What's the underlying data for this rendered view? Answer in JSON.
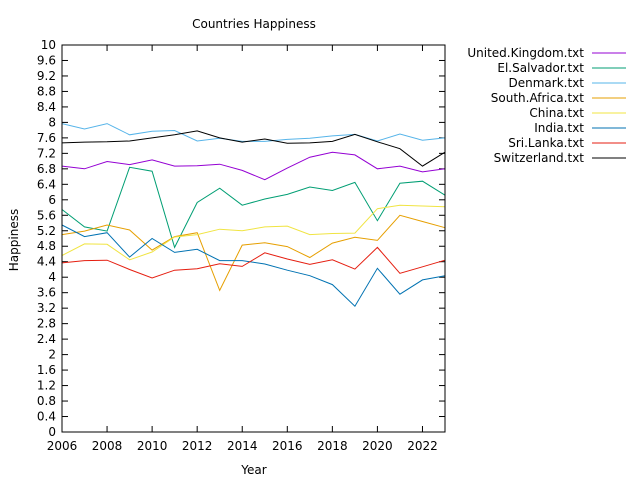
{
  "chart_data": {
    "type": "line",
    "title": "Countries Happiness",
    "xlabel": "Year",
    "ylabel": "Happiness",
    "xlim": [
      2006,
      2023
    ],
    "ylim": [
      0,
      10
    ],
    "xticks": [
      2006,
      2008,
      2010,
      2012,
      2014,
      2016,
      2018,
      2020,
      2022
    ],
    "yticks": [
      0,
      0.4,
      0.8,
      1.2,
      1.6,
      2,
      2.4,
      2.8,
      3.2,
      3.6,
      4,
      4.4,
      4.8,
      5.2,
      5.6,
      6,
      6.4,
      6.8,
      7.2,
      7.6,
      8,
      8.4,
      8.8,
      9.2,
      9.6,
      10
    ],
    "ytick_labels": [
      "0",
      "0.4",
      "0.8",
      "1.2",
      "1.6",
      "2",
      "2.4",
      "2.8",
      "3.2",
      "3.6",
      "4",
      "4.4",
      "4.8",
      "5.2",
      "5.6",
      "6",
      "6.4",
      "6.8",
      "7.2",
      "7.6",
      "8",
      "8.4",
      "8.8",
      "9.2",
      "9.6",
      "10"
    ],
    "grid": false,
    "legend_position": "outside-right",
    "x": [
      2006,
      2007,
      2008,
      2009,
      2010,
      2011,
      2012,
      2013,
      2014,
      2015,
      2016,
      2017,
      2018,
      2019,
      2020,
      2021,
      2022,
      2023
    ],
    "series": [
      {
        "name": "United.Kingdom.txt",
        "color": "#9400d3",
        "values": [
          6.87,
          6.8,
          6.99,
          6.91,
          7.03,
          6.87,
          6.88,
          6.92,
          6.76,
          6.52,
          6.82,
          7.1,
          7.23,
          7.16,
          6.8,
          6.87,
          6.72,
          6.8
        ]
      },
      {
        "name": "El.Salvador.txt",
        "color": "#009e73",
        "values": [
          5.75,
          5.3,
          5.19,
          6.84,
          6.74,
          4.77,
          5.93,
          6.3,
          5.86,
          6.02,
          6.14,
          6.33,
          6.24,
          6.45,
          5.46,
          6.43,
          6.48,
          6.12
        ]
      },
      {
        "name": "Denmark.txt",
        "color": "#56b4e9",
        "values": [
          7.97,
          7.83,
          7.97,
          7.68,
          7.77,
          7.79,
          7.52,
          7.59,
          7.51,
          7.51,
          7.56,
          7.59,
          7.65,
          7.69,
          7.52,
          7.7,
          7.54,
          7.6
        ]
      },
      {
        "name": "South.Africa.txt",
        "color": "#e69f00",
        "values": [
          5.1,
          5.19,
          5.35,
          5.22,
          4.7,
          5.05,
          5.15,
          3.66,
          4.83,
          4.89,
          4.79,
          4.51,
          4.88,
          5.03,
          4.95,
          5.6,
          5.44,
          5.28
        ]
      },
      {
        "name": "China.txt",
        "color": "#f0e442",
        "values": [
          4.56,
          4.86,
          4.85,
          4.45,
          4.65,
          5.04,
          5.1,
          5.24,
          5.2,
          5.3,
          5.32,
          5.1,
          5.13,
          5.14,
          5.77,
          5.86,
          5.84,
          5.82
        ]
      },
      {
        "name": "India.txt",
        "color": "#0072b2",
        "values": [
          5.35,
          5.05,
          5.15,
          4.52,
          5.0,
          4.64,
          4.72,
          4.43,
          4.43,
          4.34,
          4.18,
          4.04,
          3.81,
          3.25,
          4.23,
          3.56,
          3.93,
          4.04
        ]
      },
      {
        "name": "Sri.Lanka.txt",
        "color": "#e51e10",
        "values": [
          4.37,
          4.43,
          4.44,
          4.2,
          3.98,
          4.18,
          4.22,
          4.35,
          4.28,
          4.63,
          4.47,
          4.33,
          4.45,
          4.21,
          4.77,
          4.1,
          4.27,
          4.44
        ]
      },
      {
        "name": "Switzerland.txt",
        "color": "#000000",
        "values": [
          7.47,
          7.49,
          7.5,
          7.52,
          7.6,
          7.68,
          7.78,
          7.6,
          7.49,
          7.57,
          7.46,
          7.47,
          7.51,
          7.69,
          7.5,
          7.32,
          6.87,
          7.23
        ]
      }
    ]
  }
}
